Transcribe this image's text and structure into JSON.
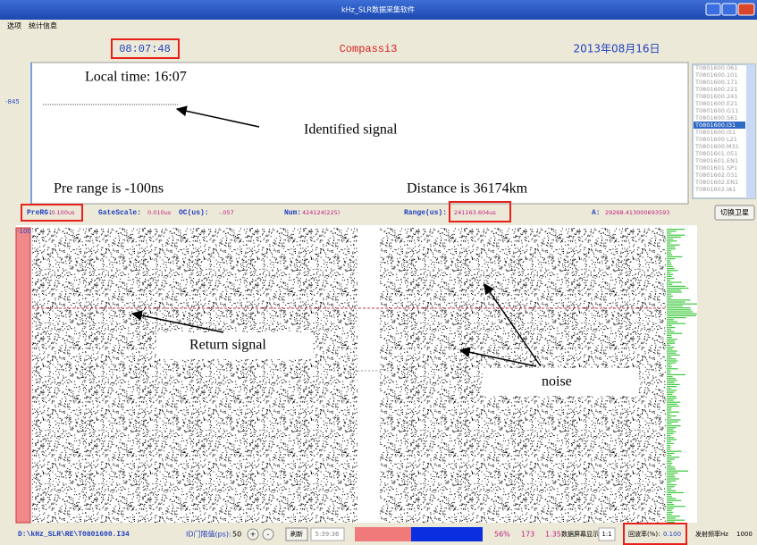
{
  "window": {
    "title": "kHz_SLR数据采集软件"
  },
  "menu": [
    "选项",
    "统计信息"
  ],
  "header": {
    "time": "08:07:48",
    "target": "Compassi3",
    "date": "2013年08月16日"
  },
  "top_plot": {
    "y_label": "-845",
    "annotations": [
      "Local time: 16:07",
      "Identified signal",
      "Pre range is -100ns",
      "Distance is 36174km"
    ]
  },
  "file_list": [
    "T0801600.061",
    "T0801600.101",
    "T0801600.171",
    "T0801600.221",
    "T0801600.241",
    "T0801600.E21",
    "T0801600.G11",
    "T0801600.S61",
    "T0801600.I31",
    "T0801600.I51",
    "T0801600.L21",
    "T0801600.M31",
    "T0801601.051",
    "T0801601.EN1",
    "T0801601.SP1",
    "T0801602.031",
    "T0801602.EN1",
    "T0801602.IA1"
  ],
  "info_bar": {
    "fields": [
      {
        "label": "PreRG:",
        "value": "-0.100us"
      },
      {
        "label": "GateScale:",
        "value": "0.010us"
      },
      {
        "label": "OC(us):",
        "value": "-.057"
      },
      {
        "label": "Num:",
        "value": "424124(225)"
      },
      {
        "label": "Range(us):",
        "value": "241163.604us"
      },
      {
        "label": "A:",
        "value": "29268.413000693593"
      }
    ],
    "button": "切换卫星"
  },
  "bottom_plot": {
    "y_label": "-100",
    "annotations": [
      "Return signal",
      "noise"
    ]
  },
  "status_bar": {
    "path": "D:\\kHz_SLR\\RE\\T0801600.I34",
    "threshold_label": "ID门限值(ps):",
    "threshold": "50",
    "plus": "+",
    "minus": "-",
    "refresh": "刷新",
    "clock": "5:39:36",
    "percent": "56%",
    "count": "173",
    "ratio_value": "1.35",
    "scale_label": "数据屏幕显示比例:",
    "scale": "1:1",
    "return_rate_label": "回波率(%):",
    "return_rate": "0.100",
    "freq_label": "发射频率Hz",
    "freq": "1000"
  }
}
